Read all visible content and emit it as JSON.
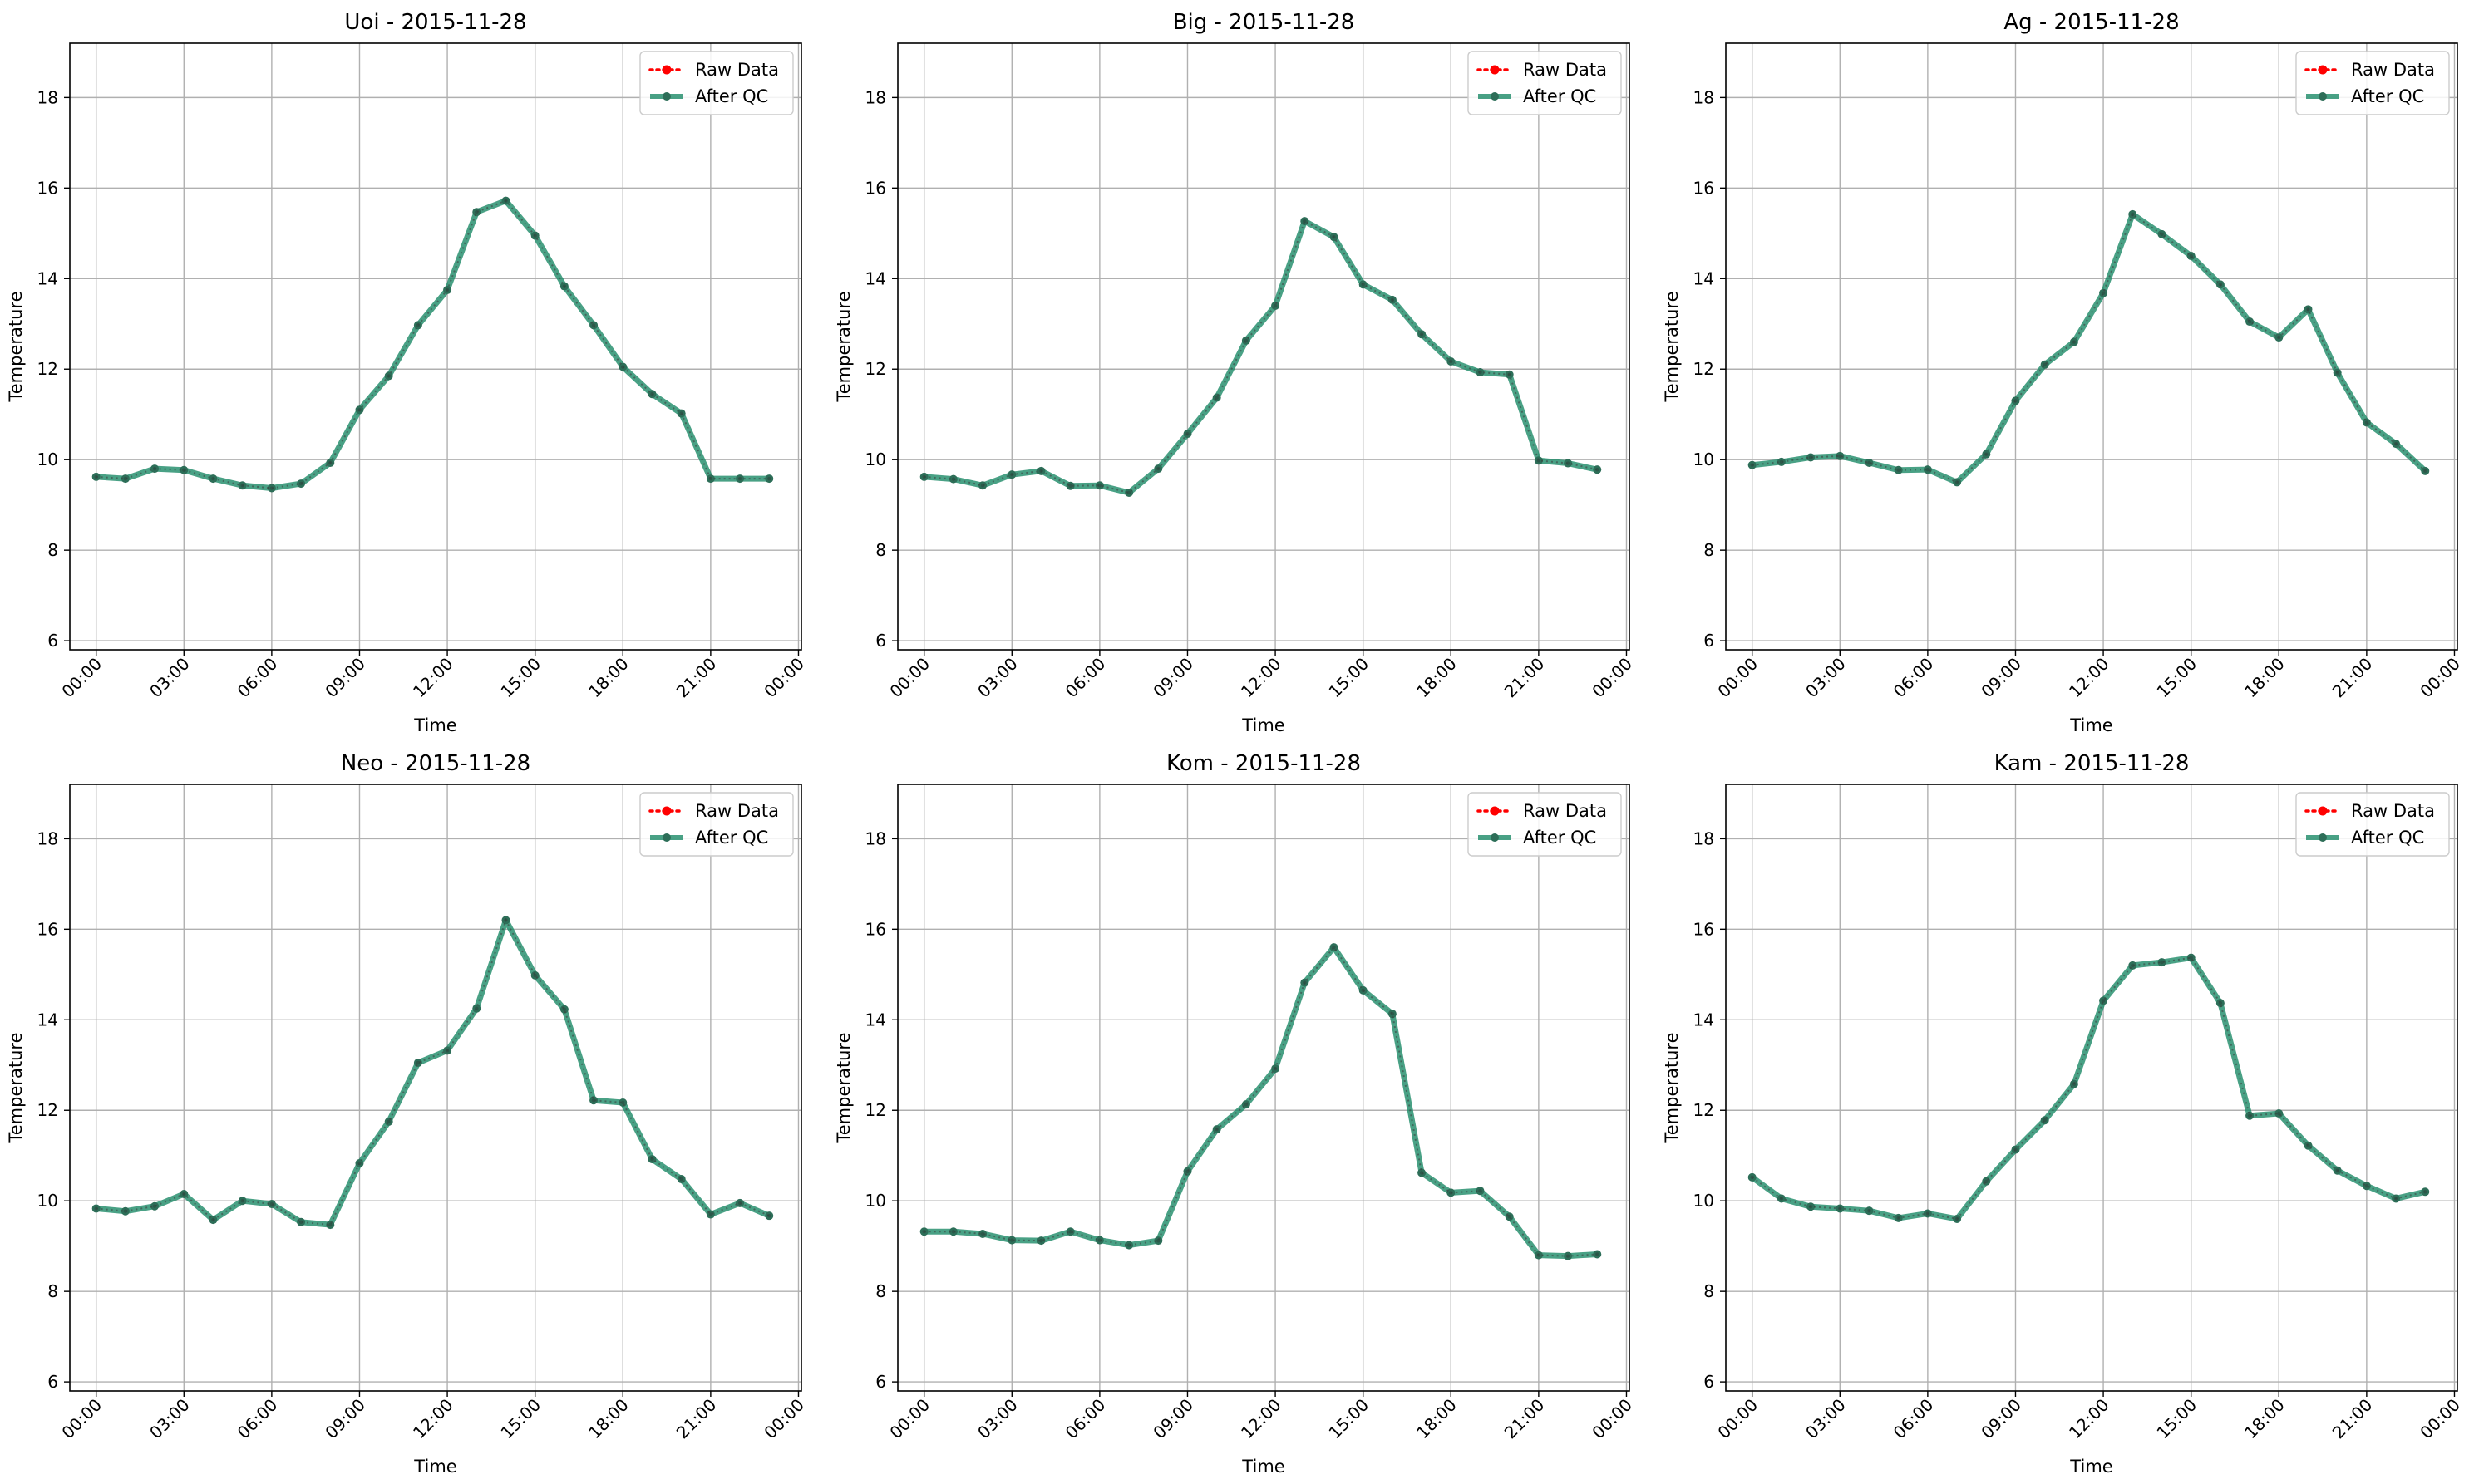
{
  "figure": {
    "background": "#ffffff"
  },
  "style": {
    "raw_color": "#ff0000",
    "qc_color": "#1b8a66",
    "qc_marker_color": "#2d6e58",
    "grid_color": "#b0b0b0"
  },
  "legend": {
    "raw_label": "Raw Data",
    "qc_label": "After QC",
    "location": "upper right"
  },
  "axes_common": {
    "xlabel": "Time",
    "ylabel": "Temperature",
    "ylim": [
      5.8,
      19.2
    ],
    "yticks": [
      6,
      8,
      10,
      12,
      14,
      16,
      18
    ],
    "xlim_hours": [
      -0.9,
      24.1
    ],
    "xticks_hours": [
      0,
      3,
      6,
      9,
      12,
      15,
      18,
      21,
      24
    ],
    "xtick_labels": [
      "00:00",
      "03:00",
      "06:00",
      "09:00",
      "12:00",
      "15:00",
      "18:00",
      "21:00",
      "00:00"
    ],
    "grid": true
  },
  "chart_data": [
    {
      "type": "line",
      "title": "Uoi - 2015-11-28",
      "xlabel": "Time",
      "ylabel": "Temperature",
      "x": [
        "00:00",
        "01:00",
        "02:00",
        "03:00",
        "04:00",
        "05:00",
        "06:00",
        "07:00",
        "08:00",
        "09:00",
        "10:00",
        "11:00",
        "12:00",
        "13:00",
        "14:00",
        "15:00",
        "16:00",
        "17:00",
        "18:00",
        "19:00",
        "20:00",
        "21:00",
        "22:00",
        "23:00"
      ],
      "series": [
        {
          "name": "Raw Data",
          "values": [
            9.62,
            9.58,
            9.8,
            9.77,
            9.58,
            9.43,
            9.37,
            9.47,
            9.93,
            11.1,
            11.85,
            12.97,
            13.75,
            15.47,
            15.72,
            14.95,
            13.83,
            12.97,
            12.05,
            11.45,
            11.02,
            9.58,
            9.58,
            9.58
          ]
        },
        {
          "name": "After QC",
          "values": [
            9.62,
            9.58,
            9.8,
            9.77,
            9.58,
            9.43,
            9.37,
            9.47,
            9.93,
            11.1,
            11.85,
            12.97,
            13.75,
            15.47,
            15.72,
            14.95,
            13.83,
            12.97,
            12.05,
            11.45,
            11.02,
            9.58,
            9.58,
            9.58
          ]
        }
      ]
    },
    {
      "type": "line",
      "title": "Big - 2015-11-28",
      "xlabel": "Time",
      "ylabel": "Temperature",
      "x": [
        "00:00",
        "01:00",
        "02:00",
        "03:00",
        "04:00",
        "05:00",
        "06:00",
        "07:00",
        "08:00",
        "09:00",
        "10:00",
        "11:00",
        "12:00",
        "13:00",
        "14:00",
        "15:00",
        "16:00",
        "17:00",
        "18:00",
        "19:00",
        "20:00",
        "21:00",
        "22:00",
        "23:00"
      ],
      "series": [
        {
          "name": "Raw Data",
          "values": [
            9.62,
            9.57,
            9.43,
            9.67,
            9.75,
            9.42,
            9.43,
            9.27,
            9.8,
            10.57,
            11.37,
            12.63,
            13.4,
            15.27,
            14.92,
            13.87,
            13.53,
            12.77,
            12.17,
            11.93,
            11.88,
            9.98,
            9.92,
            9.78
          ]
        },
        {
          "name": "After QC",
          "values": [
            9.62,
            9.57,
            9.43,
            9.67,
            9.75,
            9.42,
            9.43,
            9.27,
            9.8,
            10.57,
            11.37,
            12.63,
            13.4,
            15.27,
            14.92,
            13.87,
            13.53,
            12.77,
            12.17,
            11.93,
            11.88,
            9.98,
            9.92,
            9.78
          ]
        }
      ]
    },
    {
      "type": "line",
      "title": "Ag - 2015-11-28",
      "xlabel": "Time",
      "ylabel": "Temperature",
      "x": [
        "00:00",
        "01:00",
        "02:00",
        "03:00",
        "04:00",
        "05:00",
        "06:00",
        "07:00",
        "08:00",
        "09:00",
        "10:00",
        "11:00",
        "12:00",
        "13:00",
        "14:00",
        "15:00",
        "16:00",
        "17:00",
        "18:00",
        "19:00",
        "20:00",
        "21:00",
        "22:00",
        "23:00"
      ],
      "series": [
        {
          "name": "Raw Data",
          "values": [
            9.88,
            9.95,
            10.05,
            10.08,
            9.93,
            9.77,
            9.78,
            9.5,
            10.12,
            11.3,
            12.1,
            12.6,
            13.68,
            15.42,
            14.98,
            14.5,
            13.87,
            13.05,
            12.7,
            13.32,
            11.92,
            10.82,
            10.35,
            9.75
          ]
        },
        {
          "name": "After QC",
          "values": [
            9.88,
            9.95,
            10.05,
            10.08,
            9.93,
            9.77,
            9.78,
            9.5,
            10.12,
            11.3,
            12.1,
            12.6,
            13.68,
            15.42,
            14.98,
            14.5,
            13.87,
            13.05,
            12.7,
            13.32,
            11.92,
            10.82,
            10.35,
            9.75
          ]
        }
      ]
    },
    {
      "type": "line",
      "title": "Neo - 2015-11-28",
      "xlabel": "Time",
      "ylabel": "Temperature",
      "x": [
        "00:00",
        "01:00",
        "02:00",
        "03:00",
        "04:00",
        "05:00",
        "06:00",
        "07:00",
        "08:00",
        "09:00",
        "10:00",
        "11:00",
        "12:00",
        "13:00",
        "14:00",
        "15:00",
        "16:00",
        "17:00",
        "18:00",
        "19:00",
        "20:00",
        "21:00",
        "22:00",
        "23:00"
      ],
      "series": [
        {
          "name": "Raw Data",
          "values": [
            9.83,
            9.77,
            9.88,
            10.15,
            9.58,
            10.0,
            9.93,
            9.53,
            9.47,
            10.83,
            11.75,
            13.05,
            13.32,
            14.25,
            16.2,
            14.98,
            14.23,
            12.22,
            12.17,
            10.92,
            10.48,
            9.7,
            9.95,
            9.67
          ]
        },
        {
          "name": "After QC",
          "values": [
            9.83,
            9.77,
            9.88,
            10.15,
            9.58,
            10.0,
            9.93,
            9.53,
            9.47,
            10.83,
            11.75,
            13.05,
            13.32,
            14.25,
            16.2,
            14.98,
            14.23,
            12.22,
            12.17,
            10.92,
            10.48,
            9.7,
            9.95,
            9.67
          ]
        }
      ]
    },
    {
      "type": "line",
      "title": "Kom - 2015-11-28",
      "xlabel": "Time",
      "ylabel": "Temperature",
      "x": [
        "00:00",
        "01:00",
        "02:00",
        "03:00",
        "04:00",
        "05:00",
        "06:00",
        "07:00",
        "08:00",
        "09:00",
        "10:00",
        "11:00",
        "12:00",
        "13:00",
        "14:00",
        "15:00",
        "16:00",
        "17:00",
        "18:00",
        "19:00",
        "20:00",
        "21:00",
        "22:00",
        "23:00"
      ],
      "series": [
        {
          "name": "Raw Data",
          "values": [
            9.32,
            9.32,
            9.27,
            9.13,
            9.12,
            9.32,
            9.13,
            9.02,
            9.12,
            10.65,
            11.58,
            12.13,
            12.92,
            14.82,
            15.6,
            14.65,
            14.13,
            10.62,
            10.18,
            10.22,
            9.65,
            8.8,
            8.78,
            8.82
          ]
        },
        {
          "name": "After QC",
          "values": [
            9.32,
            9.32,
            9.27,
            9.13,
            9.12,
            9.32,
            9.13,
            9.02,
            9.12,
            10.65,
            11.58,
            12.13,
            12.92,
            14.82,
            15.6,
            14.65,
            14.13,
            10.62,
            10.18,
            10.22,
            9.65,
            8.8,
            8.78,
            8.82
          ]
        }
      ]
    },
    {
      "type": "line",
      "title": "Kam - 2015-11-28",
      "xlabel": "Time",
      "ylabel": "Temperature",
      "x": [
        "00:00",
        "01:00",
        "02:00",
        "03:00",
        "04:00",
        "05:00",
        "06:00",
        "07:00",
        "08:00",
        "09:00",
        "10:00",
        "11:00",
        "12:00",
        "13:00",
        "14:00",
        "15:00",
        "16:00",
        "17:00",
        "18:00",
        "19:00",
        "20:00",
        "21:00",
        "22:00",
        "23:00"
      ],
      "series": [
        {
          "name": "Raw Data",
          "values": [
            10.52,
            10.05,
            9.87,
            9.83,
            9.78,
            9.62,
            9.72,
            9.6,
            10.43,
            11.13,
            11.78,
            12.58,
            14.42,
            15.2,
            15.27,
            15.37,
            14.37,
            11.88,
            11.93,
            11.22,
            10.67,
            10.33,
            10.05,
            10.2
          ]
        },
        {
          "name": "After QC",
          "values": [
            10.52,
            10.05,
            9.87,
            9.83,
            9.78,
            9.62,
            9.72,
            9.6,
            10.43,
            11.13,
            11.78,
            12.58,
            14.42,
            15.2,
            15.27,
            15.37,
            14.37,
            11.88,
            11.93,
            11.22,
            10.67,
            10.33,
            10.05,
            10.2
          ]
        }
      ]
    }
  ]
}
